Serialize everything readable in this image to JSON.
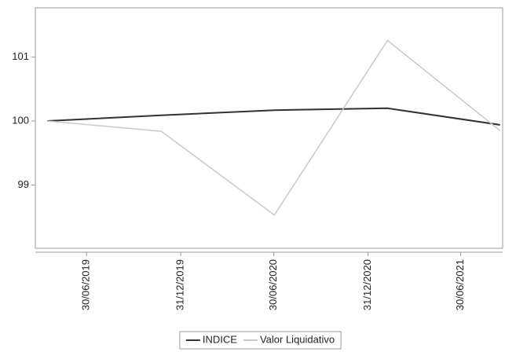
{
  "chart_data": {
    "type": "line",
    "x": [
      "2019-04-14",
      "2019-11-23",
      "2020-07-01",
      "2021-02-07",
      "2021-09-15"
    ],
    "series": [
      {
        "name": "INDICE",
        "color": "#333333",
        "values": [
          100,
          100.09,
          100.17,
          100.2,
          99.94
        ]
      },
      {
        "name": "Valor Liquidativo",
        "color": "#c8c8c8",
        "values": [
          100,
          99.84,
          98.53,
          101.26,
          99.85
        ]
      }
    ],
    "xlim": [
      "2019-03-22",
      "2021-09-20"
    ],
    "xticks": [
      {
        "value": "2019-06-30",
        "label": "30/06/2019"
      },
      {
        "value": "2019-12-31",
        "label": "31/12/2019"
      },
      {
        "value": "2020-06-30",
        "label": "30/06/2020"
      },
      {
        "value": "2020-12-31",
        "label": "31/12/2020"
      },
      {
        "value": "2021-06-30",
        "label": "30/06/2021"
      }
    ],
    "ylim": [
      98.01,
      101.77
    ],
    "yticks": [
      99,
      100,
      101
    ],
    "legend": "bottom"
  }
}
